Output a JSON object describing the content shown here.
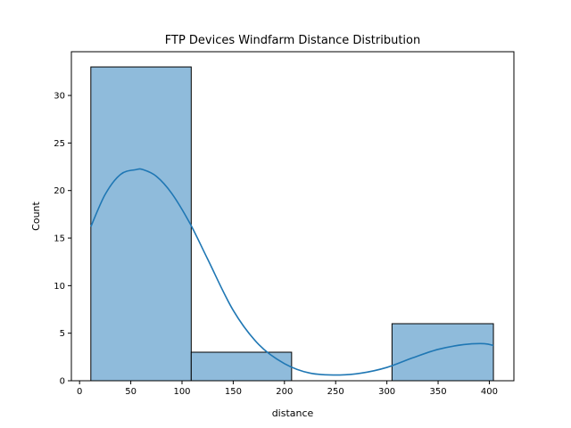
{
  "chart_data": {
    "type": "bar",
    "title": "FTP Devices Windfarm Distance Distribution",
    "xlabel": "distance",
    "ylabel": "Count",
    "xlim": [
      -8,
      424
    ],
    "ylim": [
      0,
      34.6
    ],
    "xticks": [
      0,
      50,
      100,
      150,
      200,
      250,
      300,
      350,
      400
    ],
    "yticks": [
      0,
      5,
      10,
      15,
      20,
      25,
      30
    ],
    "grid": false,
    "legend": "none",
    "bins": [
      {
        "x0": 11,
        "x1": 109,
        "count": 33
      },
      {
        "x0": 109,
        "x1": 207,
        "count": 3
      },
      {
        "x0": 207,
        "x1": 305,
        "count": 0
      },
      {
        "x0": 305,
        "x1": 404,
        "count": 6
      }
    ],
    "kde": {
      "x": [
        11,
        25,
        40,
        55,
        62,
        75,
        90,
        108,
        125,
        150,
        175,
        200,
        225,
        252,
        275,
        300,
        325,
        350,
        375,
        395,
        404
      ],
      "y": [
        16.2,
        19.6,
        21.7,
        22.2,
        22.2,
        21.5,
        19.7,
        16.5,
        12.8,
        7.4,
        3.8,
        1.8,
        0.8,
        0.6,
        0.8,
        1.4,
        2.4,
        3.3,
        3.8,
        3.9,
        3.7
      ]
    },
    "colors": {
      "bar_fill": "#8fbbdb",
      "bar_edge": "#000000",
      "kde_line": "#1f77b4"
    }
  }
}
